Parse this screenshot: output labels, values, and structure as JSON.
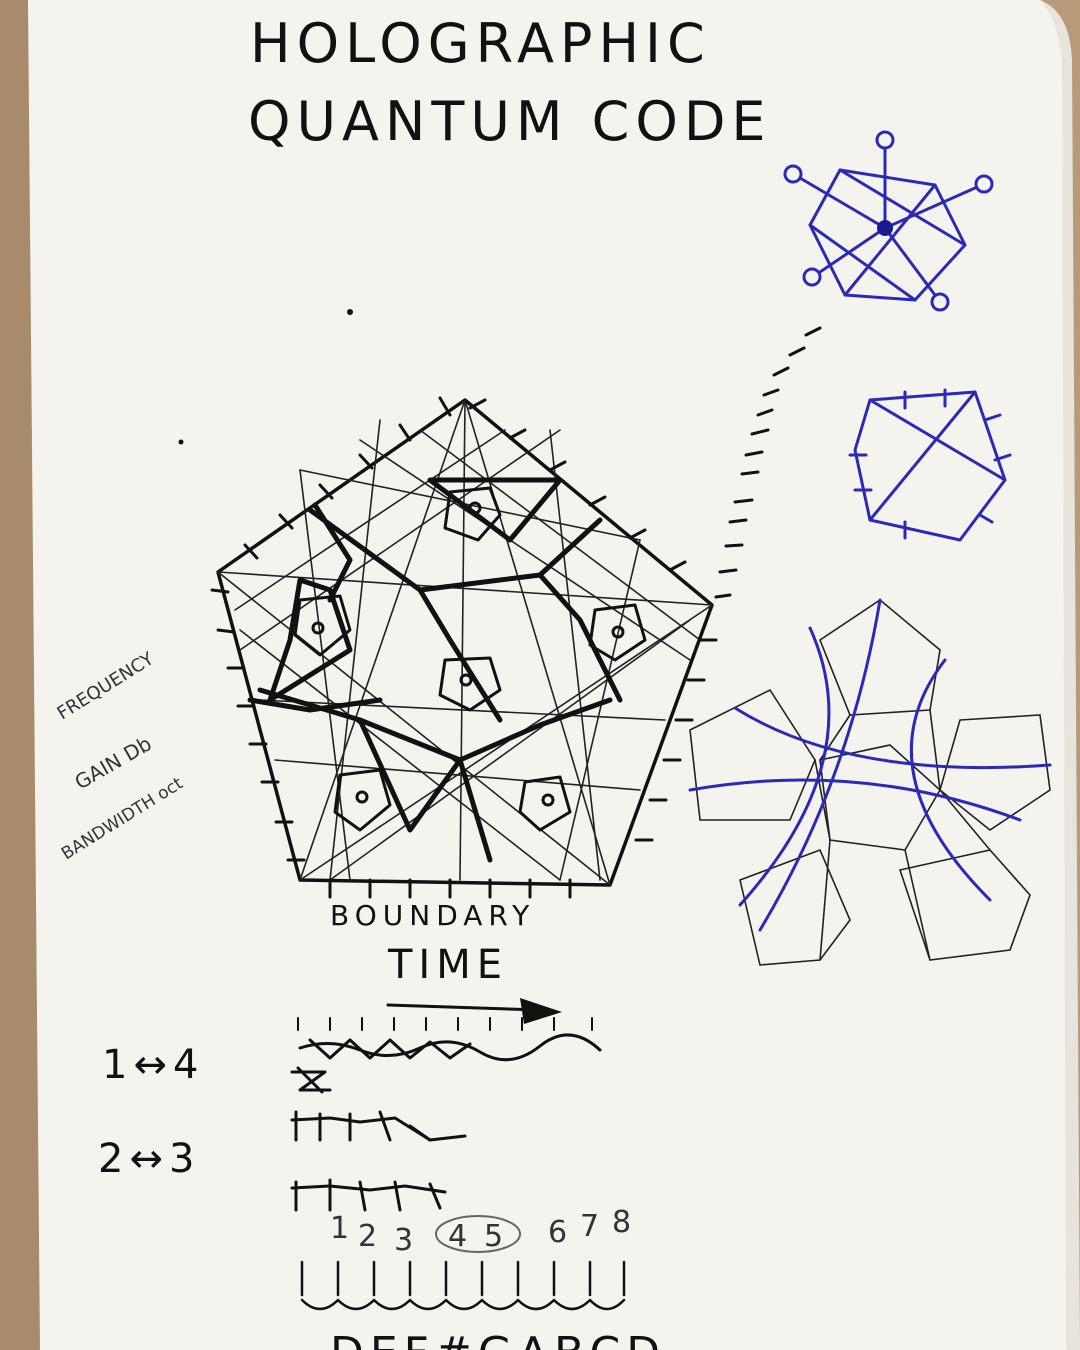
{
  "notebook": {
    "title_line1": "HOLOGRAPHIC",
    "title_line2": "QUANTUM CODE",
    "label_boundary": "BOUNDARY",
    "label_time": "TIME",
    "margin_notes": [
      "FREQUENCY",
      "GAIN Db",
      "BANDWIDTH oct"
    ],
    "mapping_1": "1↔4",
    "mapping_2": "2↔3",
    "numbers_row": [
      "1",
      "2",
      "3",
      "4",
      "5",
      "6",
      "7",
      "8"
    ],
    "bottom_letters": "DEF#GABCD",
    "colors": {
      "paper": "#f4f3ee",
      "black_ink": "#111111",
      "blue_ink": "#2a2ab8",
      "background": "#b89a78"
    }
  }
}
